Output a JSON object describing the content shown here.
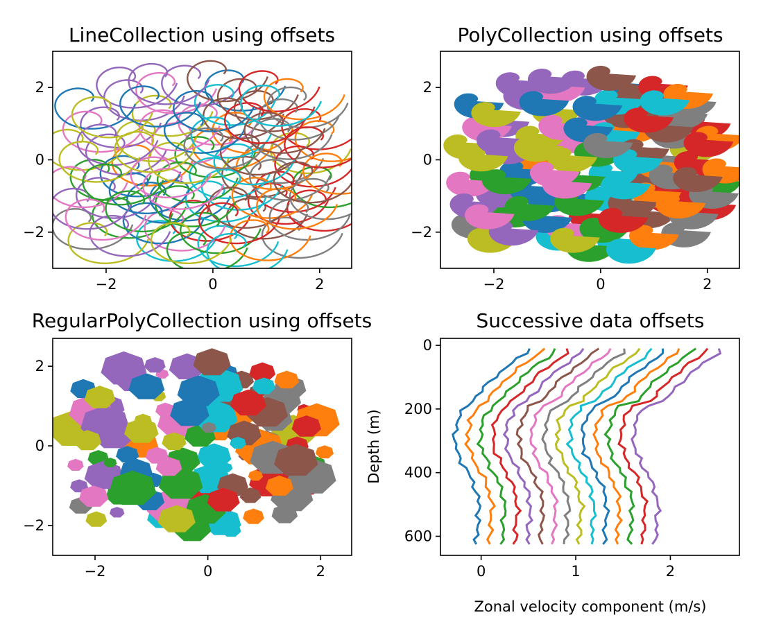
{
  "palette": [
    "#1f77b4",
    "#ff7f0e",
    "#2ca02c",
    "#d62728",
    "#9467bd",
    "#8c564b",
    "#e377c2",
    "#7f7f7f",
    "#bcbd22",
    "#17becf"
  ],
  "chart_data": [
    {
      "type": "line",
      "title": "LineCollection using offsets",
      "xlabel": "",
      "ylabel": "",
      "xlim": [
        -3.0,
        2.6
      ],
      "ylim": [
        -3.0,
        3.0
      ],
      "xticks": [
        -2,
        0,
        2
      ],
      "xtick_labels": [
        "−2",
        "0",
        "2"
      ],
      "yticks": [
        -2,
        0,
        2
      ],
      "ytick_labels": [
        "−2",
        "0",
        "2"
      ],
      "series_count": 100,
      "description": "100 spiral curves, each offset to a different (x, y) position",
      "spiral": {
        "theta_max": 6.2,
        "r_start": 0.12,
        "r_end": 0.95
      },
      "offsets": [
        [
          -0.62,
          -0.92
        ],
        [
          0.18,
          0.51
        ],
        [
          -2.11,
          -0.35
        ],
        [
          1.22,
          -1.01
        ],
        [
          -1.48,
          1.85
        ],
        [
          0.73,
          -0.27
        ],
        [
          -0.09,
          1.18
        ],
        [
          -2.45,
          -1.71
        ],
        [
          1.64,
          0.39
        ],
        [
          -0.87,
          -2.04
        ],
        [
          0.41,
          2.12
        ],
        [
          -1.33,
          0.05
        ],
        [
          2.05,
          -0.55
        ],
        [
          -0.25,
          -1.48
        ],
        [
          -1.92,
          1.1
        ],
        [
          0.96,
          1.55
        ],
        [
          -0.58,
          0.66
        ],
        [
          1.48,
          -1.95
        ],
        [
          -2.6,
          0.48
        ],
        [
          0.12,
          -0.3
        ],
        [
          -1.05,
          -0.98
        ],
        [
          0.55,
          0.95
        ],
        [
          -1.7,
          -1.4
        ],
        [
          1.85,
          1.05
        ],
        [
          -0.4,
          2.25
        ],
        [
          0.82,
          -1.42
        ],
        [
          -2.25,
          0.98
        ],
        [
          1.12,
          0.12
        ],
        [
          -0.95,
          1.42
        ],
        [
          0.28,
          -2.18
        ],
        [
          -1.55,
          -0.25
        ],
        [
          2.1,
          0.72
        ],
        [
          -0.15,
          0.28
        ],
        [
          1.35,
          -0.68
        ],
        [
          -2.0,
          -0.85
        ],
        [
          0.65,
          1.88
        ],
        [
          -0.72,
          -1.75
        ],
        [
          1.58,
          1.65
        ],
        [
          -1.25,
          0.72
        ],
        [
          0.05,
          -0.95
        ],
        [
          -2.4,
          1.62
        ],
        [
          1.0,
          -0.05
        ],
        [
          -0.48,
          -0.42
        ],
        [
          1.95,
          -1.2
        ],
        [
          -1.82,
          0.35
        ],
        [
          0.38,
          1.35
        ],
        [
          -0.88,
          2.05
        ],
        [
          1.28,
          0.78
        ],
        [
          -2.15,
          -2.1
        ],
        [
          0.15,
          0.82
        ],
        [
          -1.12,
          -1.55
        ],
        [
          0.92,
          -0.85
        ],
        [
          -0.3,
          -2.35
        ],
        [
          1.72,
          0.02
        ],
        [
          -1.62,
          2.2
        ],
        [
          0.48,
          -1.12
        ],
        [
          -2.55,
          -0.55
        ],
        [
          1.42,
          1.32
        ],
        [
          -0.65,
          0.12
        ],
        [
          0.22,
          1.72
        ],
        [
          -1.38,
          -0.72
        ],
        [
          2.25,
          -0.18
        ],
        [
          -0.05,
          -1.82
        ],
        [
          1.05,
          2.1
        ],
        [
          -1.98,
          0.62
        ],
        [
          0.7,
          0.35
        ],
        [
          -0.82,
          1.02
        ],
        [
          1.62,
          -1.45
        ],
        [
          -2.32,
          0.15
        ],
        [
          0.35,
          -0.62
        ],
        [
          -1.18,
          1.68
        ],
        [
          0.88,
          -2.02
        ],
        [
          -0.52,
          -1.08
        ],
        [
          1.9,
          0.55
        ],
        [
          -1.75,
          -1.9
        ],
        [
          0.08,
          2.38
        ],
        [
          -0.98,
          -0.28
        ],
        [
          1.25,
          -0.35
        ],
        [
          -2.08,
          1.38
        ],
        [
          0.58,
          0.08
        ],
        [
          -0.35,
          0.95
        ],
        [
          1.52,
          1.88
        ],
        [
          -1.45,
          -1.22
        ],
        [
          0.3,
          -1.55
        ],
        [
          -2.48,
          -1.15
        ],
        [
          1.15,
          0.95
        ],
        [
          -0.75,
          -0.6
        ],
        [
          2.0,
          -0.88
        ],
        [
          -1.28,
          0.42
        ],
        [
          0.45,
          -2.4
        ],
        [
          -0.18,
          1.55
        ],
        [
          1.38,
          -1.15
        ],
        [
          -1.88,
          -0.48
        ],
        [
          0.78,
          1.22
        ],
        [
          -1.02,
          2.3
        ],
        [
          1.7,
          -0.42
        ],
        [
          -2.2,
          -1.45
        ],
        [
          0.02,
          0.52
        ],
        [
          -0.6,
          -2.1
        ],
        [
          1.08,
          1.7
        ]
      ]
    },
    {
      "type": "scatter",
      "title": "PolyCollection using offsets",
      "xlabel": "",
      "ylabel": "",
      "xlim": [
        -3.0,
        2.6
      ],
      "ylim": [
        -3.0,
        3.0
      ],
      "xticks": [
        -2,
        0,
        2
      ],
      "xtick_labels": [
        "−2",
        "0",
        "2"
      ],
      "yticks": [
        -2,
        0,
        2
      ],
      "ytick_labels": [
        "−2",
        "0",
        "2"
      ],
      "description": "filled spiral polygons placed at the same offsets",
      "series_count": 100
    },
    {
      "type": "scatter",
      "title": "RegularPolyCollection using offsets",
      "xlabel": "",
      "ylabel": "",
      "xlim": [
        -2.75,
        2.55
      ],
      "ylim": [
        -2.75,
        2.7
      ],
      "xticks": [
        -2,
        0,
        2
      ],
      "xtick_labels": [
        "−2",
        "0",
        "2"
      ],
      "yticks": [
        -2,
        0,
        2
      ],
      "ytick_labels": [
        "−2",
        "0",
        "2"
      ],
      "description": "regular heptagons of varying size placed at the offsets",
      "sides": 7,
      "series_count": 100
    },
    {
      "type": "line",
      "title": "Successive data offsets",
      "xlabel": "Zonal velocity component (m/s)",
      "ylabel": "Depth (m)",
      "xlim": [
        -0.43,
        2.73
      ],
      "ylim": [
        660,
        -22
      ],
      "xticks": [
        0,
        1,
        2
      ],
      "xtick_labels": [
        "0",
        "1",
        "2"
      ],
      "yticks": [
        0,
        200,
        400,
        600
      ],
      "ytick_labels": [
        "0",
        "200",
        "400",
        "600"
      ],
      "series_count": 15,
      "series_offset_x": 0.1,
      "depth": [
        10,
        25,
        40,
        55,
        70,
        85,
        100,
        115,
        130,
        145,
        160,
        175,
        190,
        205,
        220,
        235,
        250,
        265,
        280,
        295,
        310,
        325,
        340,
        355,
        370,
        385,
        400,
        415,
        430,
        445,
        460,
        475,
        490,
        505,
        520,
        535,
        550,
        565,
        580,
        595,
        610,
        625
      ],
      "base_profile": [
        0.5,
        0.47,
        0.4,
        0.33,
        0.26,
        0.2,
        0.14,
        0.09,
        0.04,
        0.0,
        -0.05,
        -0.1,
        -0.15,
        -0.19,
        -0.22,
        -0.25,
        -0.26,
        -0.27,
        -0.28,
        -0.27,
        -0.28,
        -0.26,
        -0.25,
        -0.22,
        -0.2,
        -0.17,
        -0.14,
        -0.11,
        -0.09,
        -0.07,
        -0.05,
        -0.04,
        -0.03,
        -0.02,
        -0.02,
        -0.03,
        -0.03,
        -0.04,
        -0.04,
        -0.04,
        -0.05,
        -0.05
      ]
    }
  ]
}
